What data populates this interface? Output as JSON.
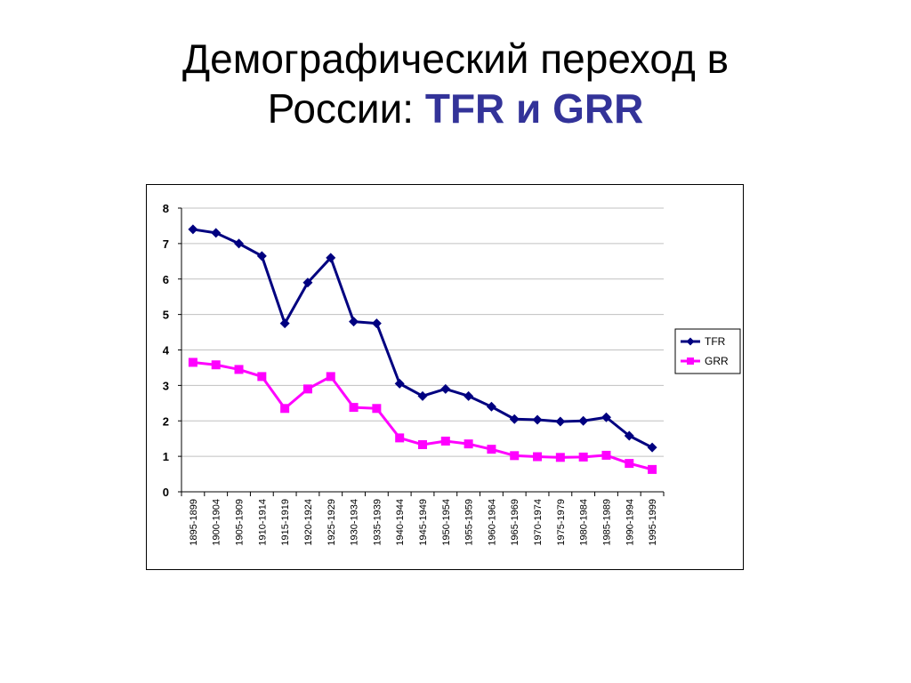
{
  "slide": {
    "title_line1": "Демографический переход в",
    "title_line2_prefix": "России: ",
    "title_line2_accent": "TFR и GRR"
  },
  "colors": {
    "accent": "#333399",
    "tfr": "#000080",
    "grr": "#FF00FF"
  },
  "chart_data": {
    "type": "line",
    "title": "",
    "xlabel": "",
    "ylabel": "",
    "ylim": [
      0,
      8
    ],
    "yticks": [
      0,
      1,
      2,
      3,
      4,
      5,
      6,
      7,
      8
    ],
    "grid": true,
    "legend_position": "right",
    "categories": [
      "1895-1899",
      "1900-1904",
      "1905-1909",
      "1910-1914",
      "1915-1919",
      "1920-1924",
      "1925-1929",
      "1930-1934",
      "1935-1939",
      "1940-1944",
      "1945-1949",
      "1950-1954",
      "1955-1959",
      "1960-1964",
      "1965-1969",
      "1970-1974",
      "1975-1979",
      "1980-1984",
      "1985-1989",
      "1990-1994",
      "1995-1999"
    ],
    "series": [
      {
        "name": "TFR",
        "marker": "diamond",
        "values": [
          7.4,
          7.3,
          7.0,
          6.65,
          4.75,
          5.9,
          6.6,
          4.8,
          4.75,
          3.05,
          2.7,
          2.9,
          2.7,
          2.4,
          2.05,
          2.03,
          1.98,
          2.0,
          2.1,
          1.58,
          1.25
        ]
      },
      {
        "name": "GRR",
        "marker": "square",
        "values": [
          3.65,
          3.58,
          3.45,
          3.25,
          2.35,
          2.9,
          3.25,
          2.38,
          2.35,
          1.52,
          1.33,
          1.43,
          1.35,
          1.2,
          1.02,
          0.99,
          0.97,
          0.98,
          1.03,
          0.8,
          0.63
        ]
      }
    ]
  }
}
